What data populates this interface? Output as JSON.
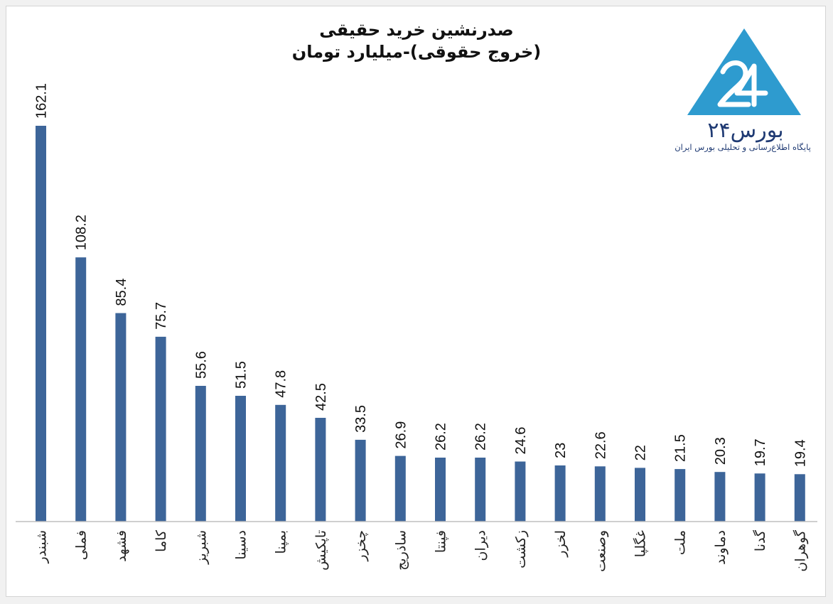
{
  "chart_data": {
    "type": "bar",
    "title": "صدرنشین خرید حقیقی",
    "subtitle": "(خروج حقوقی)-میلیارد تومان",
    "categories": [
      "شبندر",
      "فملی",
      "فشهد",
      "کاما",
      "شبریز",
      "دسینا",
      "بمپنا",
      "تاپکیش",
      "چخزر",
      "ساذریج",
      "فپنتا",
      "دیران",
      "زکشت",
      "لخزر",
      "وصنعت",
      "غگلپا",
      "ملت",
      "دماوند",
      "گدنا",
      "گوهران"
    ],
    "values": [
      162.1,
      108.2,
      85.4,
      75.7,
      55.6,
      51.5,
      47.8,
      42.5,
      33.5,
      26.9,
      26.2,
      26.2,
      24.6,
      23,
      22.6,
      22,
      21.5,
      20.3,
      19.7,
      19.4
    ],
    "value_labels": [
      "162.1",
      "108.2",
      "85.4",
      "75.7",
      "55.6",
      "51.5",
      "47.8",
      "42.5",
      "33.5",
      "26.9",
      "26.2",
      "26.2",
      "24.6",
      "23",
      "22.6",
      "22",
      "21.5",
      "20.3",
      "19.7",
      "19.4"
    ],
    "ylim": [
      0,
      162.1
    ],
    "bar_color": "#3d6599",
    "grid": false,
    "legend": "none"
  },
  "logo": {
    "wordmark": "بورس۲۴",
    "tagline": "پایگاه اطلاع‌رسانی و تحلیلی بورس ایران",
    "color": "#2e9bcf",
    "text_color": "#1f3a73"
  }
}
